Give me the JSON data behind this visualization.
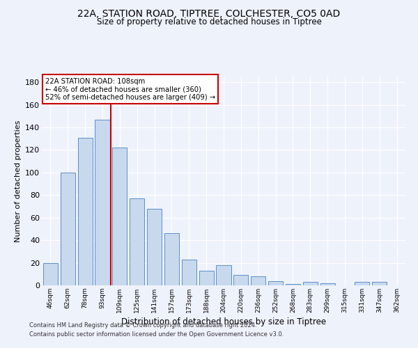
{
  "title_line1": "22A, STATION ROAD, TIPTREE, COLCHESTER, CO5 0AD",
  "title_line2": "Size of property relative to detached houses in Tiptree",
  "xlabel": "Distribution of detached houses by size in Tiptree",
  "ylabel": "Number of detached properties",
  "categories": [
    "46sqm",
    "62sqm",
    "78sqm",
    "93sqm",
    "109sqm",
    "125sqm",
    "141sqm",
    "157sqm",
    "173sqm",
    "188sqm",
    "204sqm",
    "220sqm",
    "236sqm",
    "252sqm",
    "268sqm",
    "283sqm",
    "299sqm",
    "315sqm",
    "331sqm",
    "347sqm",
    "362sqm"
  ],
  "values": [
    20,
    100,
    131,
    147,
    122,
    77,
    68,
    46,
    23,
    13,
    18,
    9,
    8,
    4,
    1,
    3,
    2,
    0,
    3,
    3,
    0
  ],
  "bar_color": "#c8d9ee",
  "bar_edge_color": "#5b8fc9",
  "annotation_text_line1": "22A STATION ROAD: 108sqm",
  "annotation_text_line2": "← 46% of detached houses are smaller (360)",
  "annotation_text_line3": "52% of semi-detached houses are larger (409) →",
  "annotation_box_color": "#ffffff",
  "annotation_box_edge": "#cc0000",
  "vline_color": "#cc0000",
  "ylim": [
    0,
    185
  ],
  "yticks": [
    0,
    20,
    40,
    60,
    80,
    100,
    120,
    140,
    160,
    180
  ],
  "footer_line1": "Contains HM Land Registry data © Crown copyright and database right 2024.",
  "footer_line2": "Contains public sector information licensed under the Open Government Licence v3.0.",
  "bg_color": "#eef2fb",
  "plot_bg_color": "#eef2fb"
}
